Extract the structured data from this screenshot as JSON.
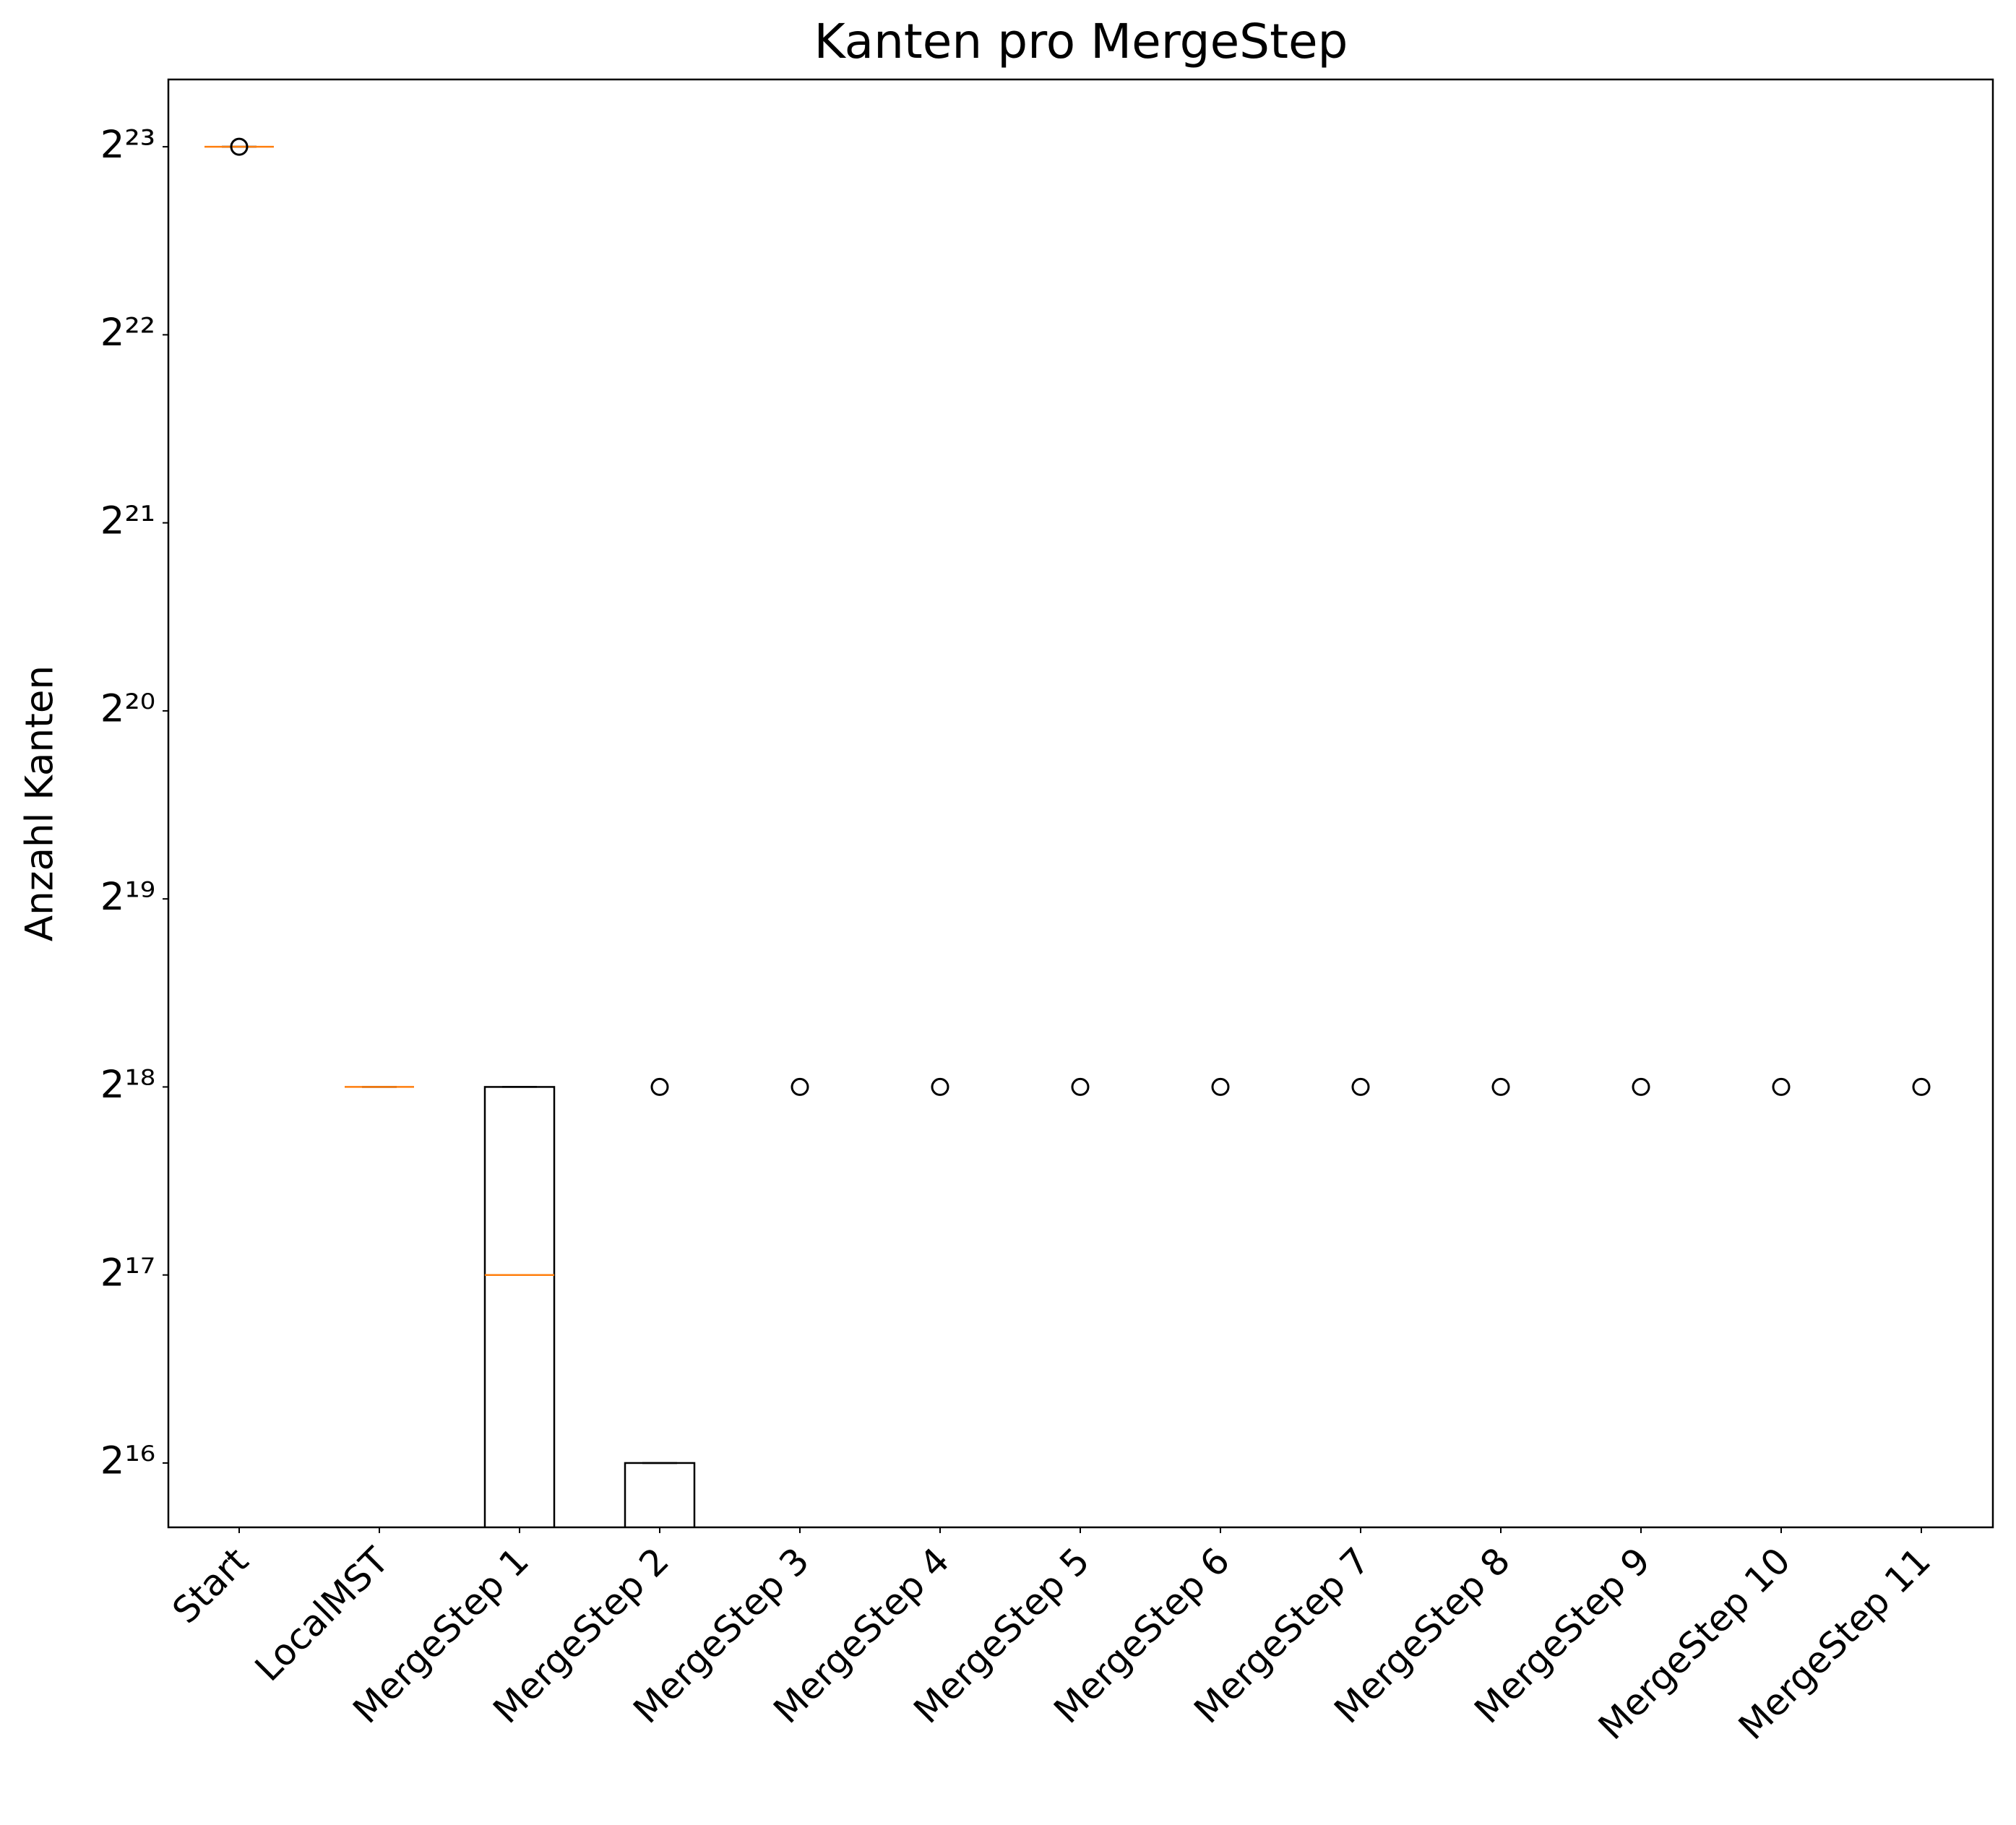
{
  "chart_data": {
    "type": "box",
    "title": "Kanten pro MergeStep",
    "y_label": "Anzahl Kanten",
    "y_scale": "log2",
    "categories": [
      "Start",
      "LocalMST",
      "MergeStep 1",
      "MergeStep 2",
      "MergeStep 3",
      "MergeStep 4",
      "MergeStep 5",
      "MergeStep 6",
      "MergeStep 7",
      "MergeStep 8",
      "MergeStep 9",
      "MergeStep 10",
      "MergeStep 11"
    ],
    "boxes": [
      {
        "whislo": 8388608,
        "q1": 8388608,
        "median": 8388608,
        "q3": 8388608,
        "whishi": 8388608,
        "fliers": [
          8388608
        ]
      },
      {
        "whislo": 262144,
        "q1": 262144,
        "median": 262144,
        "q3": 262144,
        "whishi": 262144,
        "fliers": []
      },
      {
        "whislo": 0,
        "q1": 0,
        "median": 131072,
        "q3": 262144,
        "whishi": 262144,
        "fliers": []
      },
      {
        "whislo": 0,
        "q1": 0,
        "median": 0,
        "q3": 65536,
        "whishi": 65536,
        "fliers": [
          262144
        ]
      },
      {
        "whislo": 0,
        "q1": 0,
        "median": 0,
        "q3": 0,
        "whishi": 0,
        "fliers": [
          262144
        ]
      },
      {
        "whislo": 0,
        "q1": 0,
        "median": 0,
        "q3": 0,
        "whishi": 0,
        "fliers": [
          262144
        ]
      },
      {
        "whislo": 0,
        "q1": 0,
        "median": 0,
        "q3": 0,
        "whishi": 0,
        "fliers": [
          262144
        ]
      },
      {
        "whislo": 0,
        "q1": 0,
        "median": 0,
        "q3": 0,
        "whishi": 0,
        "fliers": [
          262144
        ]
      },
      {
        "whislo": 0,
        "q1": 0,
        "median": 0,
        "q3": 0,
        "whishi": 0,
        "fliers": [
          262144
        ]
      },
      {
        "whislo": 0,
        "q1": 0,
        "median": 0,
        "q3": 0,
        "whishi": 0,
        "fliers": [
          262144
        ]
      },
      {
        "whislo": 0,
        "q1": 0,
        "median": 0,
        "q3": 0,
        "whishi": 0,
        "fliers": [
          262144
        ]
      },
      {
        "whislo": 0,
        "q1": 0,
        "median": 0,
        "q3": 0,
        "whishi": 0,
        "fliers": [
          262144
        ]
      },
      {
        "whislo": 0,
        "q1": 0,
        "median": 0,
        "q3": 0,
        "whishi": 0,
        "fliers": [
          262144
        ]
      }
    ],
    "box_color": "#000000",
    "median_color": "#ff7f0e",
    "ylim": [
      51700,
      10750000
    ],
    "yticks": [
      {
        "value": 65536,
        "label": "2¹⁶"
      },
      {
        "value": 131072,
        "label": "2¹⁷"
      },
      {
        "value": 262144,
        "label": "2¹⁸"
      },
      {
        "value": 524288,
        "label": "2¹⁹"
      },
      {
        "value": 1048576,
        "label": "2²⁰"
      },
      {
        "value": 2097152,
        "label": "2²¹"
      },
      {
        "value": 4194304,
        "label": "2²²"
      },
      {
        "value": 8388608,
        "label": "2²³"
      }
    ]
  }
}
